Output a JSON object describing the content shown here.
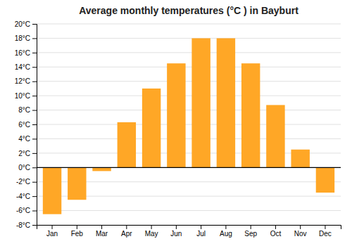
{
  "chart_data": {
    "type": "bar",
    "title": "Average monthly temperatures (°C ) in Bayburt",
    "categories": [
      "Jan",
      "Feb",
      "Mar",
      "Apr",
      "May",
      "Jun",
      "Jul",
      "Aug",
      "Sep",
      "Oct",
      "Nov",
      "Dec"
    ],
    "values": [
      -6.5,
      -4.5,
      -0.5,
      6.3,
      11.0,
      14.5,
      18.0,
      18.0,
      14.5,
      8.7,
      2.5,
      -3.5
    ],
    "color": "#FFA726",
    "ylim": [
      -8,
      20
    ],
    "yticks": [
      {
        "value": -8,
        "label": "-8°C"
      },
      {
        "value": -6,
        "label": "-6°C"
      },
      {
        "value": -4,
        "label": "-4°C"
      },
      {
        "value": -2,
        "label": "-2°C"
      },
      {
        "value": 0,
        "label": "0°C"
      },
      {
        "value": 2,
        "label": "2°C"
      },
      {
        "value": 4,
        "label": "4°C"
      },
      {
        "value": 6,
        "label": "6°C"
      },
      {
        "value": 8,
        "label": "8°C"
      },
      {
        "value": 10,
        "label": "10°C"
      },
      {
        "value": 12,
        "label": "12°C"
      },
      {
        "value": 14,
        "label": "14°C"
      },
      {
        "value": 16,
        "label": "16°C"
      },
      {
        "value": 18,
        "label": "18°C"
      },
      {
        "value": 20,
        "label": "20°C"
      }
    ],
    "grid": true
  }
}
